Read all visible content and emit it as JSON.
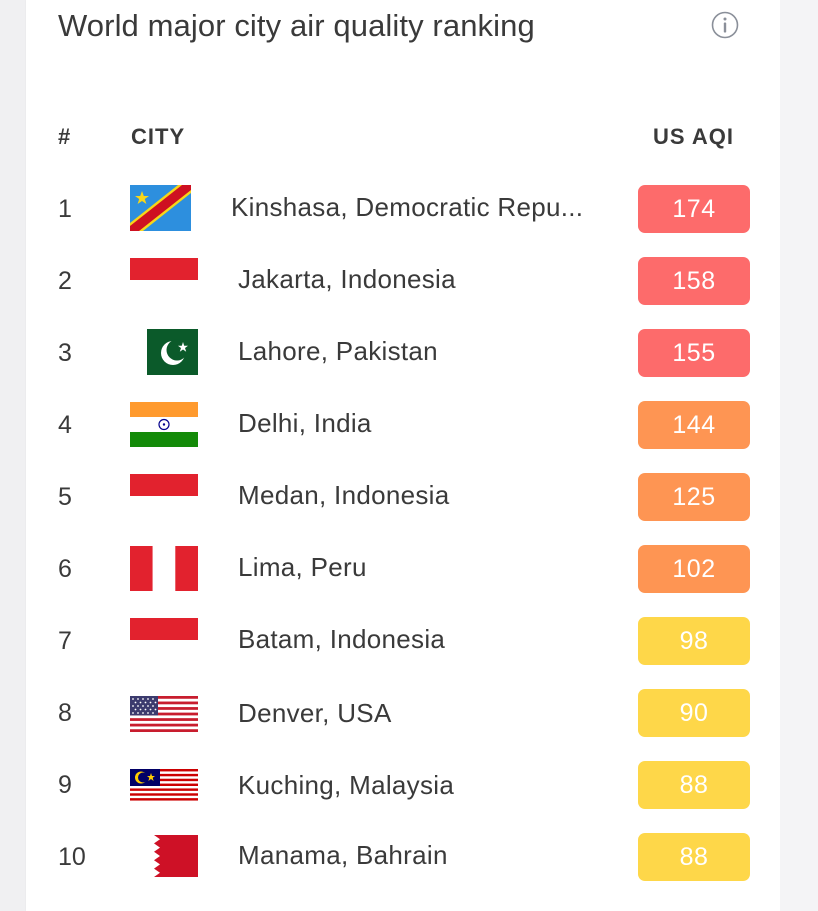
{
  "title": "World major city air quality ranking",
  "header": {
    "rank": "#",
    "city": "CITY",
    "aqi": "US AQI"
  },
  "colors": {
    "unhealthy": "#fd6b6b",
    "unhealthy_sensitive": "#fe9553",
    "moderate": "#fed749"
  },
  "rows": [
    {
      "rank": "1",
      "city": "Kinshasa, Democratic Repu...",
      "aqi": "174",
      "flag": "flag-drc-icon"
    },
    {
      "rank": "2",
      "city": "Jakarta, Indonesia",
      "aqi": "158",
      "flag": "flag-indonesia-icon"
    },
    {
      "rank": "3",
      "city": "Lahore, Pakistan",
      "aqi": "155",
      "flag": "flag-pakistan-icon"
    },
    {
      "rank": "4",
      "city": "Delhi, India",
      "aqi": "144",
      "flag": "flag-india-icon"
    },
    {
      "rank": "5",
      "city": "Medan, Indonesia",
      "aqi": "125",
      "flag": "flag-indonesia-icon"
    },
    {
      "rank": "6",
      "city": "Lima, Peru",
      "aqi": "102",
      "flag": "flag-peru-icon"
    },
    {
      "rank": "7",
      "city": "Batam, Indonesia",
      "aqi": "98",
      "flag": "flag-indonesia-icon"
    },
    {
      "rank": "8",
      "city": "Denver, USA",
      "aqi": "90",
      "flag": "flag-usa-icon"
    },
    {
      "rank": "9",
      "city": "Kuching, Malaysia",
      "aqi": "88",
      "flag": "flag-malaysia-icon"
    },
    {
      "rank": "10",
      "city": "Manama, Bahrain",
      "aqi": "88",
      "flag": "flag-bahrain-icon"
    }
  ]
}
